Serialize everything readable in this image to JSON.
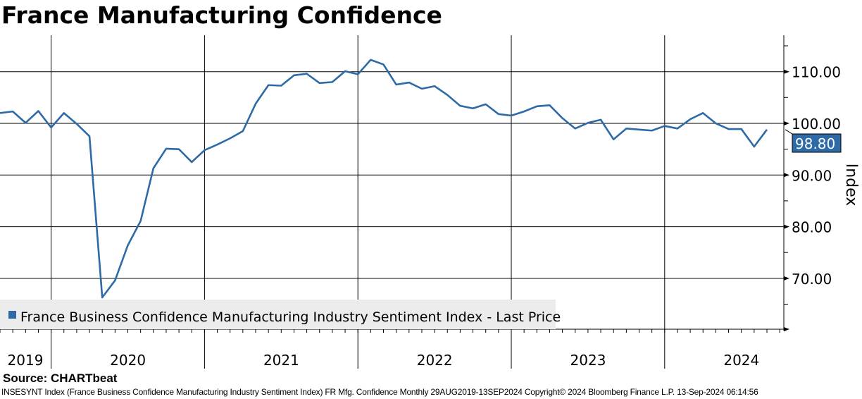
{
  "title": "France Manufacturing Confidence",
  "source": "Source: CHARTbeat",
  "footer": "INSESYNT Index (France Business Confidence Manufacturing Industry Sentiment Index) FR Mfg. Confidence  Monthly 29AUG2019-13SEP2024  Copyright© 2024 Bloomberg Finance L.P.  13-Sep-2024 06:14:56",
  "chart_data": {
    "type": "line",
    "title": "France Manufacturing Confidence",
    "ylabel": "Index",
    "ylim": [
      62.6,
      117
    ],
    "yticks": [
      70,
      80,
      90,
      100,
      110
    ],
    "ytick_labels": [
      "70.00",
      "80.00",
      "90.00",
      "100.00",
      "110.00"
    ],
    "xlabel": "",
    "x_start": "2019-09",
    "x_tick_labels": [
      "2019",
      "2020",
      "2021",
      "2022",
      "2023",
      "2024"
    ],
    "grid": true,
    "legend": "bottom-left",
    "last_value_label": "98.80",
    "color": "#2e6aa6",
    "series": [
      {
        "name": "France Business Confidence Manufacturing Industry Sentiment Index - Last Price",
        "values": [
          102.0,
          102.3,
          100.1,
          102.4,
          99.2,
          102.0,
          99.9,
          97.5,
          66.3,
          69.6,
          76.4,
          81.1,
          91.3,
          95.1,
          95.0,
          92.5,
          94.8,
          95.9,
          97.1,
          98.5,
          103.8,
          107.4,
          107.3,
          109.3,
          109.6,
          107.8,
          108.0,
          110.1,
          109.5,
          112.3,
          111.4,
          107.5,
          107.9,
          106.7,
          107.2,
          105.5,
          103.4,
          102.9,
          103.7,
          101.8,
          101.5,
          102.3,
          103.3,
          103.5,
          101.0,
          99.0,
          100.1,
          100.7,
          96.9,
          99.0,
          98.8,
          98.6,
          99.5,
          99.0,
          100.8,
          102.0,
          100.0,
          98.9,
          98.9,
          95.5,
          98.8
        ]
      }
    ]
  }
}
